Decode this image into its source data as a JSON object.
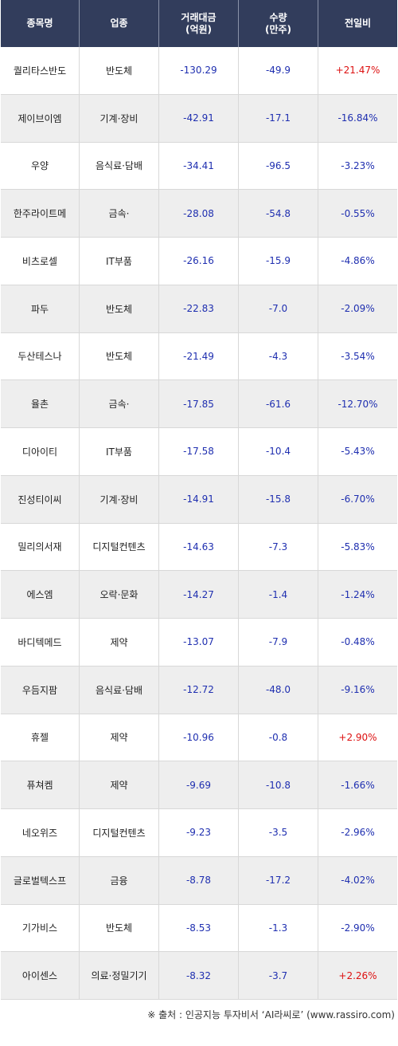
{
  "header": {
    "col1": "종목명",
    "col2": "업종",
    "col3": "거래대금\n(억원)",
    "col4": "수량\n(만주)",
    "col5": "전일비"
  },
  "rows": [
    {
      "name": "퀄리타스반도",
      "sector": "반도체",
      "amount": "-130.29",
      "volume": "-49.9",
      "change": "+21.47%",
      "dir": "pos"
    },
    {
      "name": "제이브이엠",
      "sector": "기계·장비",
      "amount": "-42.91",
      "volume": "-17.1",
      "change": "-16.84%",
      "dir": "neg"
    },
    {
      "name": "우양",
      "sector": "음식료·담배",
      "amount": "-34.41",
      "volume": "-96.5",
      "change": "-3.23%",
      "dir": "neg"
    },
    {
      "name": "한주라이트메",
      "sector": "금속·",
      "amount": "-28.08",
      "volume": "-54.8",
      "change": "-0.55%",
      "dir": "neg"
    },
    {
      "name": "비츠로셀",
      "sector": "IT부품",
      "amount": "-26.16",
      "volume": "-15.9",
      "change": "-4.86%",
      "dir": "neg"
    },
    {
      "name": "파두",
      "sector": "반도체",
      "amount": "-22.83",
      "volume": "-7.0",
      "change": "-2.09%",
      "dir": "neg"
    },
    {
      "name": "두산테스나",
      "sector": "반도체",
      "amount": "-21.49",
      "volume": "-4.3",
      "change": "-3.54%",
      "dir": "neg"
    },
    {
      "name": "율촌",
      "sector": "금속·",
      "amount": "-17.85",
      "volume": "-61.6",
      "change": "-12.70%",
      "dir": "neg"
    },
    {
      "name": "디아이티",
      "sector": "IT부품",
      "amount": "-17.58",
      "volume": "-10.4",
      "change": "-5.43%",
      "dir": "neg"
    },
    {
      "name": "진성티이씨",
      "sector": "기계·장비",
      "amount": "-14.91",
      "volume": "-15.8",
      "change": "-6.70%",
      "dir": "neg"
    },
    {
      "name": "밀리의서재",
      "sector": "디지털컨텐츠",
      "amount": "-14.63",
      "volume": "-7.3",
      "change": "-5.83%",
      "dir": "neg"
    },
    {
      "name": "에스엠",
      "sector": "오락·문화",
      "amount": "-14.27",
      "volume": "-1.4",
      "change": "-1.24%",
      "dir": "neg"
    },
    {
      "name": "바디텍메드",
      "sector": "제약",
      "amount": "-13.07",
      "volume": "-7.9",
      "change": "-0.48%",
      "dir": "neg"
    },
    {
      "name": "우듬지팜",
      "sector": "음식료·담배",
      "amount": "-12.72",
      "volume": "-48.0",
      "change": "-9.16%",
      "dir": "neg"
    },
    {
      "name": "휴젤",
      "sector": "제약",
      "amount": "-10.96",
      "volume": "-0.8",
      "change": "+2.90%",
      "dir": "pos"
    },
    {
      "name": "퓨쳐켐",
      "sector": "제약",
      "amount": "-9.69",
      "volume": "-10.8",
      "change": "-1.66%",
      "dir": "neg"
    },
    {
      "name": "네오위즈",
      "sector": "디지털컨텐츠",
      "amount": "-9.23",
      "volume": "-3.5",
      "change": "-2.96%",
      "dir": "neg"
    },
    {
      "name": "글로벌텍스프",
      "sector": "금융",
      "amount": "-8.78",
      "volume": "-17.2",
      "change": "-4.02%",
      "dir": "neg"
    },
    {
      "name": "기가비스",
      "sector": "반도체",
      "amount": "-8.53",
      "volume": "-1.3",
      "change": "-2.90%",
      "dir": "neg"
    },
    {
      "name": "아이센스",
      "sector": "의료·정밀기기",
      "amount": "-8.32",
      "volume": "-3.7",
      "change": "+2.26%",
      "dir": "pos"
    }
  ],
  "footer": {
    "source": "※ 출처 : 인공지능 투자비서 ‘AI라씨로’ (www.rassiro.com)"
  },
  "colors": {
    "header_bg": "#323d5c",
    "negative": "#1f2fb0",
    "positive": "#dd1111",
    "alt_row": "#eeeeee"
  }
}
